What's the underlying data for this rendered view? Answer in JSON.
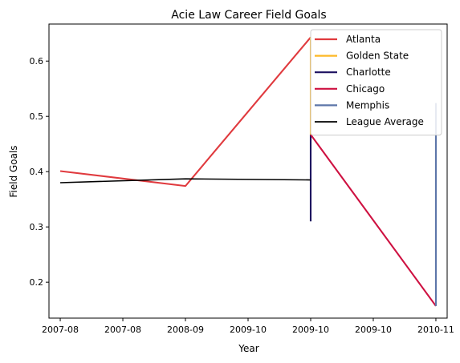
{
  "chart_data": {
    "type": "line",
    "title": "Acie Law Career Field Goals",
    "xlabel": "Year",
    "ylabel": "Field Goals",
    "x_tick_labels": [
      "2007-08",
      "2007-08",
      "2008-09",
      "2009-10",
      "2009-10",
      "2009-10",
      "2010-11"
    ],
    "x_categories": [
      0,
      1,
      2,
      3,
      4,
      5,
      6
    ],
    "xlim": [
      -0.18,
      6.18
    ],
    "ylim": [
      0.135,
      0.667
    ],
    "y_ticks": [
      0.2,
      0.3,
      0.4,
      0.5,
      0.6
    ],
    "y_tick_labels": [
      "0.2",
      "0.3",
      "0.4",
      "0.5",
      "0.6"
    ],
    "grid": false,
    "legend_position": "top-right",
    "series": [
      {
        "name": "Atlanta",
        "color": "#e03a3e",
        "points": [
          [
            0,
            0.401
          ],
          [
            2,
            0.374
          ],
          [
            4,
            0.643
          ]
        ]
      },
      {
        "name": "Golden State",
        "color": "#fdb927",
        "points": [
          [
            4,
            0.643
          ],
          [
            4,
            0.467
          ]
        ]
      },
      {
        "name": "Charlotte",
        "color": "#1d1160",
        "points": [
          [
            4,
            0.467
          ],
          [
            4,
            0.31
          ]
        ]
      },
      {
        "name": "Chicago",
        "color": "#ce1141",
        "points": [
          [
            4,
            0.467
          ],
          [
            6,
            0.157
          ]
        ]
      },
      {
        "name": "Memphis",
        "color": "#5d76a9",
        "points": [
          [
            6,
            0.157
          ],
          [
            6,
            0.524
          ]
        ]
      },
      {
        "name": "League Average",
        "color": "#000000",
        "points": [
          [
            0,
            0.38
          ],
          [
            2,
            0.387
          ],
          [
            4,
            0.385
          ]
        ]
      }
    ]
  }
}
